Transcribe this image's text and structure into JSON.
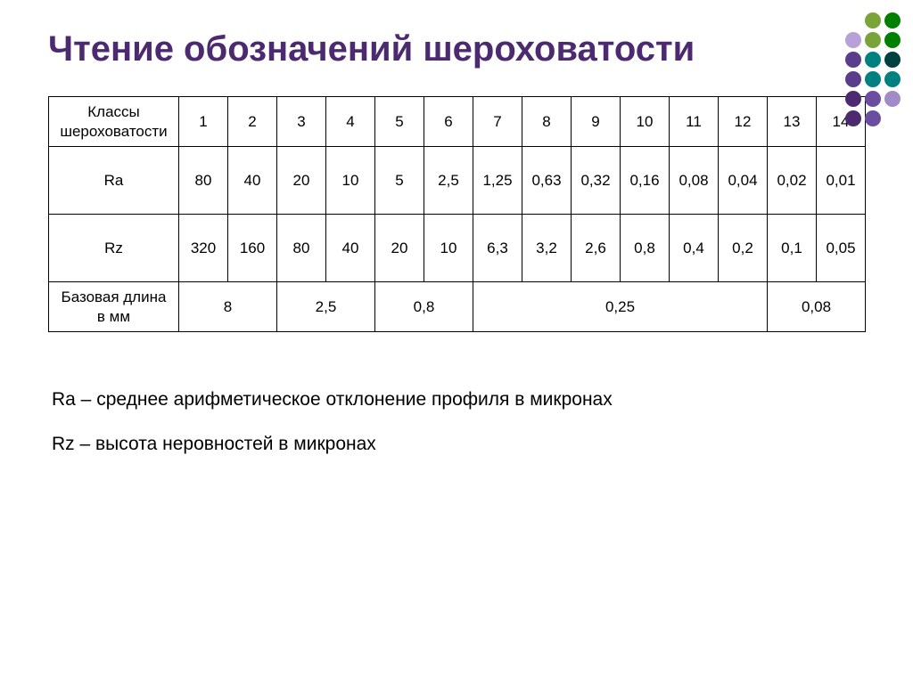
{
  "title": "Чтение обозначений шероховатости",
  "decor": {
    "dots": [
      null,
      "#7aa43a",
      "#008000",
      "#b7a1d6",
      "#7aa43a",
      "#008000",
      "#5a3e8c",
      "#008080",
      "#004040",
      "#5a3e8c",
      "#008080",
      "#008080",
      "#4b2a70",
      "#6a4ea0",
      "#a18cc9",
      "#4b2a70",
      "#6a4ea0",
      null
    ]
  },
  "table": {
    "header_label": "Классы шероховатости",
    "classes": [
      "1",
      "2",
      "3",
      "4",
      "5",
      "6",
      "7",
      "8",
      "9",
      "10",
      "11",
      "12",
      "13",
      "14"
    ],
    "ra_label": "Ra",
    "ra": [
      "80",
      "40",
      "20",
      "10",
      "5",
      "2,5",
      "1,25",
      "0,63",
      "0,32",
      "0,16",
      "0,08",
      "0,04",
      "0,02",
      "0,01"
    ],
    "rz_label": "Rz",
    "rz": [
      "320",
      "160",
      "80",
      "40",
      "20",
      "10",
      "6,3",
      "3,2",
      "2,6",
      "0,8",
      "0,4",
      "0,2",
      "0,1",
      "0,05"
    ],
    "base_label": "Базовая длина в мм",
    "base_groups": [
      {
        "span": 2,
        "value": "8"
      },
      {
        "span": 2,
        "value": "2,5"
      },
      {
        "span": 2,
        "value": "0,8"
      },
      {
        "span": 6,
        "value": "0,25"
      },
      {
        "span": 2,
        "value": "0,08"
      }
    ]
  },
  "notes": {
    "ra": "Ra – среднее арифметическое отклонение профиля в микронах",
    "rz": "Rz – высота неровностей в микронах"
  }
}
